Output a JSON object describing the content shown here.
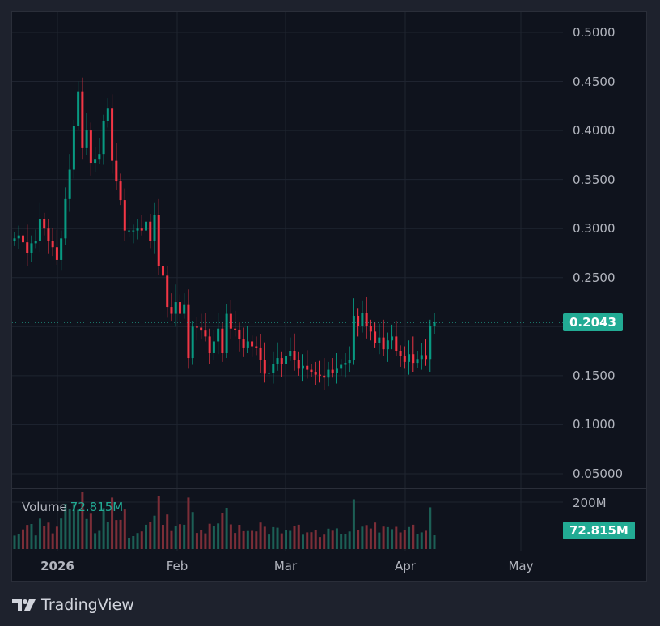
{
  "chart_data": {
    "type": "candlestick",
    "title": "",
    "price_axis": {
      "ticks": [
        "0.5000",
        "0.4500",
        "0.4000",
        "0.3500",
        "0.3000",
        "0.2500",
        "0.1500",
        "0.1000",
        "0.05000"
      ],
      "range": [
        0.05,
        0.5
      ]
    },
    "time_axis": {
      "ticks": [
        "2026",
        "Feb",
        "Mar",
        "Apr",
        "May"
      ]
    },
    "last_price": "0.2043",
    "volume": {
      "label": "Volume",
      "last": "72.815M",
      "axis_tick": "200M"
    },
    "closes": [
      0.29,
      0.293,
      0.286,
      0.275,
      0.285,
      0.287,
      0.31,
      0.3,
      0.287,
      0.281,
      0.268,
      0.29,
      0.33,
      0.36,
      0.405,
      0.44,
      0.382,
      0.4,
      0.367,
      0.371,
      0.376,
      0.41,
      0.423,
      0.369,
      0.348,
      0.329,
      0.298,
      0.298,
      0.298,
      0.3,
      0.298,
      0.307,
      0.287,
      0.314,
      0.262,
      0.252,
      0.22,
      0.213,
      0.225,
      0.213,
      0.222,
      0.168,
      0.2,
      0.199,
      0.196,
      0.19,
      0.173,
      0.185,
      0.198,
      0.173,
      0.213,
      0.198,
      0.197,
      0.187,
      0.178,
      0.185,
      0.18,
      0.178,
      0.166,
      0.152,
      0.153,
      0.162,
      0.168,
      0.162,
      0.17,
      0.175,
      0.166,
      0.157,
      0.16,
      0.156,
      0.154,
      0.151,
      0.15,
      0.148,
      0.156,
      0.153,
      0.157,
      0.161,
      0.163,
      0.166,
      0.211,
      0.201,
      0.214,
      0.201,
      0.195,
      0.183,
      0.189,
      0.177,
      0.186,
      0.19,
      0.175,
      0.17,
      0.164,
      0.172,
      0.163,
      0.167,
      0.171,
      0.167,
      0.201,
      0.2043
    ],
    "colors": {
      "up": "#089981",
      "down": "#f23645",
      "vol_up": "#1c5f55",
      "vol_down": "#7c2e38"
    }
  },
  "price_axis_labels": [
    "0.5000",
    "0.4500",
    "0.4000",
    "0.3500",
    "0.3000",
    "0.2500",
    "0.1500",
    "0.1000",
    "0.05000"
  ],
  "time_labels": [
    "2026",
    "Feb",
    "Mar",
    "Apr",
    "May"
  ],
  "last_price_badge": "0.2043",
  "volume_legend": {
    "label": "Volume",
    "value": "72.815M"
  },
  "volume_axis_tick": "200M",
  "volume_badge": "72.815M",
  "brand": "TradingView"
}
